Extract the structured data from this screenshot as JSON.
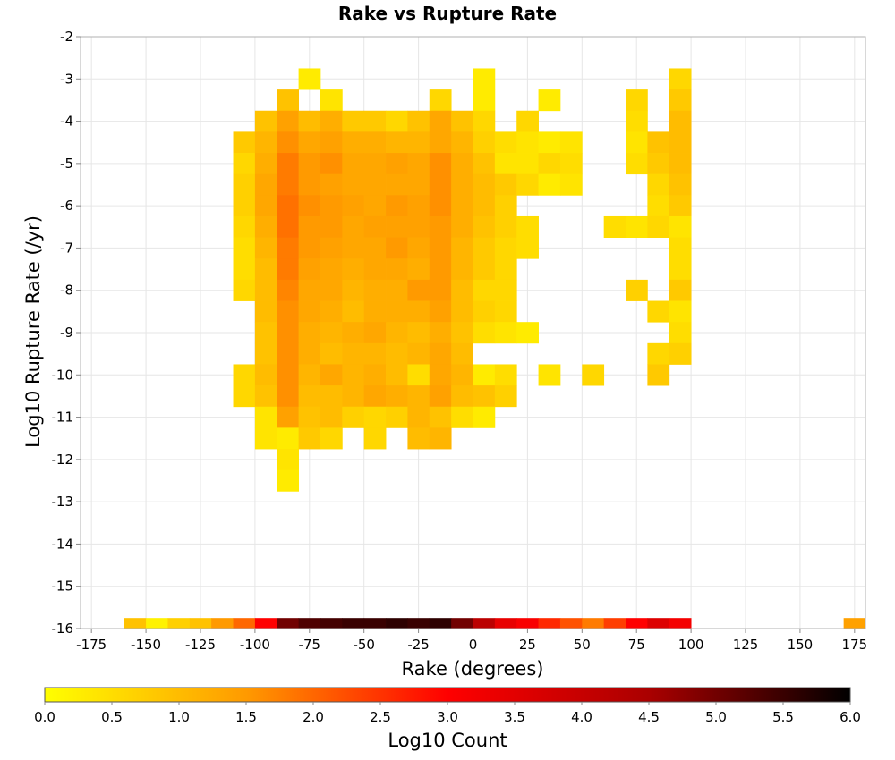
{
  "chart_data": {
    "type": "heatmap",
    "title": "Rake vs Rupture Rate",
    "xlabel": "Rake (degrees)",
    "ylabel": "Log10 Rupture Rate (/yr)",
    "xlim": [
      -180,
      180
    ],
    "ylim": [
      -16,
      -2
    ],
    "x_bin_width": 10,
    "y_bin_width": 0.5,
    "x_ticks": [
      -175,
      -150,
      -125,
      -100,
      -75,
      -50,
      -25,
      0,
      25,
      50,
      75,
      100,
      125,
      150,
      175
    ],
    "y_ticks": [
      -2,
      -3,
      -4,
      -5,
      -6,
      -7,
      -8,
      -9,
      -10,
      -11,
      -12,
      -13,
      -14,
      -15,
      -16
    ],
    "grid": true,
    "colorbar": {
      "label": "Log10 Count",
      "range": [
        0.0,
        6.0
      ],
      "ticks": [
        "0.0",
        "0.5",
        "1.0",
        "1.5",
        "2.0",
        "2.5",
        "3.0",
        "3.5",
        "4.0",
        "4.5",
        "5.0",
        "5.5",
        "6.0"
      ],
      "colors": [
        "#ffff00",
        "#ff9a00",
        "#ff0000",
        "#aa0000",
        "#000000"
      ]
    },
    "rows": [
      {
        "y": -3.0,
        "cells": [
          [
            -75,
            0.3
          ],
          [
            5,
            0.3
          ],
          [
            95,
            0.6
          ]
        ]
      },
      {
        "y": -3.5,
        "cells": [
          [
            -85,
            0.9
          ],
          [
            -65,
            0.4
          ],
          [
            -15,
            0.6
          ],
          [
            5,
            0.3
          ],
          [
            35,
            0.3
          ],
          [
            75,
            0.6
          ],
          [
            95,
            0.8
          ]
        ]
      },
      {
        "y": -4.0,
        "cells": [
          [
            -95,
            0.9
          ],
          [
            -85,
            1.4
          ],
          [
            -75,
            1.0
          ],
          [
            -65,
            1.2
          ],
          [
            -55,
            0.8
          ],
          [
            -45,
            0.8
          ],
          [
            -35,
            0.6
          ],
          [
            -25,
            0.9
          ],
          [
            -15,
            1.3
          ],
          [
            -5,
            0.9
          ],
          [
            5,
            0.6
          ],
          [
            25,
            0.6
          ],
          [
            75,
            0.5
          ],
          [
            95,
            1.0
          ]
        ]
      },
      {
        "y": -4.5,
        "cells": [
          [
            -105,
            0.8
          ],
          [
            -95,
            1.1
          ],
          [
            -85,
            1.6
          ],
          [
            -75,
            1.3
          ],
          [
            -65,
            1.4
          ],
          [
            -55,
            1.2
          ],
          [
            -45,
            1.2
          ],
          [
            -35,
            1.1
          ],
          [
            -25,
            1.1
          ],
          [
            -15,
            1.3
          ],
          [
            -5,
            1.1
          ],
          [
            5,
            0.7
          ],
          [
            15,
            0.5
          ],
          [
            25,
            0.4
          ],
          [
            35,
            0.3
          ],
          [
            45,
            0.4
          ],
          [
            75,
            0.4
          ],
          [
            85,
            0.9
          ],
          [
            95,
            1.0
          ]
        ]
      },
      {
        "y": -5.0,
        "cells": [
          [
            -105,
            0.6
          ],
          [
            -95,
            1.2
          ],
          [
            -85,
            1.8
          ],
          [
            -75,
            1.5
          ],
          [
            -65,
            1.6
          ],
          [
            -55,
            1.3
          ],
          [
            -45,
            1.3
          ],
          [
            -35,
            1.4
          ],
          [
            -25,
            1.3
          ],
          [
            -15,
            1.6
          ],
          [
            -5,
            1.2
          ],
          [
            5,
            0.9
          ],
          [
            15,
            0.4
          ],
          [
            25,
            0.4
          ],
          [
            35,
            0.6
          ],
          [
            45,
            0.5
          ],
          [
            75,
            0.5
          ],
          [
            85,
            0.8
          ],
          [
            95,
            1.0
          ]
        ]
      },
      {
        "y": -5.5,
        "cells": [
          [
            -105,
            0.7
          ],
          [
            -95,
            1.3
          ],
          [
            -85,
            1.8
          ],
          [
            -75,
            1.5
          ],
          [
            -65,
            1.4
          ],
          [
            -55,
            1.3
          ],
          [
            -45,
            1.3
          ],
          [
            -35,
            1.3
          ],
          [
            -25,
            1.3
          ],
          [
            -15,
            1.6
          ],
          [
            -5,
            1.2
          ],
          [
            5,
            1.0
          ],
          [
            15,
            0.8
          ],
          [
            25,
            0.6
          ],
          [
            35,
            0.3
          ],
          [
            45,
            0.4
          ],
          [
            85,
            0.6
          ],
          [
            95,
            0.9
          ]
        ]
      },
      {
        "y": -6.0,
        "cells": [
          [
            -105,
            0.7
          ],
          [
            -95,
            1.3
          ],
          [
            -85,
            1.9
          ],
          [
            -75,
            1.6
          ],
          [
            -65,
            1.5
          ],
          [
            -55,
            1.4
          ],
          [
            -45,
            1.3
          ],
          [
            -35,
            1.5
          ],
          [
            -25,
            1.4
          ],
          [
            -15,
            1.6
          ],
          [
            -5,
            1.2
          ],
          [
            5,
            1.0
          ],
          [
            15,
            0.7
          ],
          [
            85,
            0.5
          ],
          [
            95,
            0.8
          ]
        ]
      },
      {
        "y": -6.5,
        "cells": [
          [
            -105,
            0.6
          ],
          [
            -95,
            1.2
          ],
          [
            -85,
            1.9
          ],
          [
            -75,
            1.5
          ],
          [
            -65,
            1.5
          ],
          [
            -55,
            1.3
          ],
          [
            -45,
            1.4
          ],
          [
            -35,
            1.4
          ],
          [
            -25,
            1.4
          ],
          [
            -15,
            1.5
          ],
          [
            -5,
            1.2
          ],
          [
            5,
            0.9
          ],
          [
            15,
            0.7
          ],
          [
            25,
            0.5
          ],
          [
            65,
            0.5
          ],
          [
            75,
            0.4
          ],
          [
            85,
            0.6
          ],
          [
            95,
            0.4
          ]
        ]
      },
      {
        "y": -7.0,
        "cells": [
          [
            -105,
            0.5
          ],
          [
            -95,
            1.1
          ],
          [
            -85,
            1.8
          ],
          [
            -75,
            1.5
          ],
          [
            -65,
            1.4
          ],
          [
            -55,
            1.3
          ],
          [
            -45,
            1.3
          ],
          [
            -35,
            1.5
          ],
          [
            -25,
            1.3
          ],
          [
            -15,
            1.5
          ],
          [
            -5,
            1.1
          ],
          [
            5,
            0.8
          ],
          [
            15,
            0.6
          ],
          [
            25,
            0.5
          ],
          [
            95,
            0.5
          ]
        ]
      },
      {
        "y": -7.5,
        "cells": [
          [
            -105,
            0.5
          ],
          [
            -95,
            1.0
          ],
          [
            -85,
            1.8
          ],
          [
            -75,
            1.4
          ],
          [
            -65,
            1.3
          ],
          [
            -55,
            1.2
          ],
          [
            -45,
            1.3
          ],
          [
            -35,
            1.3
          ],
          [
            -25,
            1.2
          ],
          [
            -15,
            1.5
          ],
          [
            -5,
            1.1
          ],
          [
            5,
            0.8
          ],
          [
            15,
            0.6
          ],
          [
            95,
            0.5
          ]
        ]
      },
      {
        "y": -8.0,
        "cells": [
          [
            -105,
            0.6
          ],
          [
            -95,
            1.0
          ],
          [
            -85,
            1.7
          ],
          [
            -75,
            1.3
          ],
          [
            -65,
            1.3
          ],
          [
            -55,
            1.1
          ],
          [
            -45,
            1.2
          ],
          [
            -35,
            1.2
          ],
          [
            -25,
            1.5
          ],
          [
            -15,
            1.5
          ],
          [
            -5,
            1.0
          ],
          [
            5,
            0.6
          ],
          [
            15,
            0.6
          ],
          [
            75,
            0.7
          ],
          [
            95,
            0.8
          ]
        ]
      },
      {
        "y": -8.5,
        "cells": [
          [
            -95,
            1.0
          ],
          [
            -85,
            1.6
          ],
          [
            -75,
            1.3
          ],
          [
            -65,
            1.2
          ],
          [
            -55,
            1.0
          ],
          [
            -45,
            1.2
          ],
          [
            -35,
            1.2
          ],
          [
            -25,
            1.2
          ],
          [
            -15,
            1.4
          ],
          [
            -5,
            1.0
          ],
          [
            5,
            0.7
          ],
          [
            15,
            0.6
          ],
          [
            85,
            0.6
          ],
          [
            95,
            0.4
          ]
        ]
      },
      {
        "y": -9.0,
        "cells": [
          [
            -95,
            0.9
          ],
          [
            -85,
            1.6
          ],
          [
            -75,
            1.2
          ],
          [
            -65,
            1.1
          ],
          [
            -55,
            1.2
          ],
          [
            -45,
            1.3
          ],
          [
            -35,
            1.1
          ],
          [
            -25,
            1.0
          ],
          [
            -15,
            1.2
          ],
          [
            -5,
            0.9
          ],
          [
            5,
            0.5
          ],
          [
            15,
            0.4
          ],
          [
            25,
            0.3
          ],
          [
            95,
            0.5
          ]
        ]
      },
      {
        "y": -9.5,
        "cells": [
          [
            -95,
            0.9
          ],
          [
            -85,
            1.6
          ],
          [
            -75,
            1.2
          ],
          [
            -65,
            1.0
          ],
          [
            -55,
            1.1
          ],
          [
            -45,
            1.1
          ],
          [
            -35,
            1.0
          ],
          [
            -25,
            1.1
          ],
          [
            -15,
            1.3
          ],
          [
            -5,
            1.0
          ],
          [
            85,
            0.6
          ],
          [
            95,
            0.7
          ]
        ]
      },
      {
        "y": -10.0,
        "cells": [
          [
            -105,
            0.6
          ],
          [
            -95,
            1.0
          ],
          [
            -85,
            1.6
          ],
          [
            -75,
            1.1
          ],
          [
            -65,
            1.3
          ],
          [
            -55,
            1.1
          ],
          [
            -45,
            1.2
          ],
          [
            -35,
            1.0
          ],
          [
            -25,
            0.5
          ],
          [
            -15,
            1.3
          ],
          [
            -5,
            1.1
          ],
          [
            5,
            0.3
          ],
          [
            15,
            0.5
          ],
          [
            35,
            0.4
          ],
          [
            55,
            0.6
          ],
          [
            85,
            0.8
          ]
        ]
      },
      {
        "y": -10.5,
        "cells": [
          [
            -105,
            0.6
          ],
          [
            -95,
            0.9
          ],
          [
            -85,
            1.6
          ],
          [
            -75,
            1.0
          ],
          [
            -65,
            1.0
          ],
          [
            -55,
            1.1
          ],
          [
            -45,
            1.3
          ],
          [
            -35,
            1.2
          ],
          [
            -25,
            1.1
          ],
          [
            -15,
            1.4
          ],
          [
            -5,
            1.0
          ],
          [
            5,
            0.9
          ],
          [
            15,
            0.7
          ]
        ]
      },
      {
        "y": -11.0,
        "cells": [
          [
            -95,
            0.4
          ],
          [
            -85,
            1.4
          ],
          [
            -75,
            0.9
          ],
          [
            -65,
            1.0
          ],
          [
            -55,
            0.7
          ],
          [
            -45,
            0.6
          ],
          [
            -35,
            0.7
          ],
          [
            -25,
            1.1
          ],
          [
            -15,
            0.9
          ],
          [
            -5,
            0.5
          ],
          [
            5,
            0.3
          ]
        ]
      },
      {
        "y": -11.5,
        "cells": [
          [
            -95,
            0.4
          ],
          [
            -85,
            0.3
          ],
          [
            -75,
            0.8
          ],
          [
            -65,
            0.6
          ],
          [
            -45,
            0.6
          ],
          [
            -25,
            1.0
          ],
          [
            -15,
            1.1
          ]
        ]
      },
      {
        "y": -12.0,
        "cells": [
          [
            -85,
            0.4
          ]
        ]
      },
      {
        "y": -12.5,
        "cells": [
          [
            -85,
            0.3
          ]
        ]
      },
      {
        "y": -16.0,
        "cells": [
          [
            -155,
            0.9
          ],
          [
            -145,
            0.2
          ],
          [
            -135,
            0.7
          ],
          [
            -125,
            0.9
          ],
          [
            -115,
            1.5
          ],
          [
            -105,
            2.0
          ],
          [
            -95,
            3.0
          ],
          [
            -85,
            5.0
          ],
          [
            -75,
            5.3
          ],
          [
            -65,
            5.4
          ],
          [
            -55,
            5.5
          ],
          [
            -45,
            5.5
          ],
          [
            -35,
            5.6
          ],
          [
            -25,
            5.5
          ],
          [
            -15,
            5.6
          ],
          [
            -5,
            5.0
          ],
          [
            5,
            4.2
          ],
          [
            15,
            3.4
          ],
          [
            25,
            3.1
          ],
          [
            35,
            2.6
          ],
          [
            45,
            2.2
          ],
          [
            55,
            1.8
          ],
          [
            65,
            2.4
          ],
          [
            75,
            3.0
          ],
          [
            85,
            3.6
          ],
          [
            95,
            3.2
          ],
          [
            175,
            1.4
          ]
        ]
      }
    ]
  }
}
